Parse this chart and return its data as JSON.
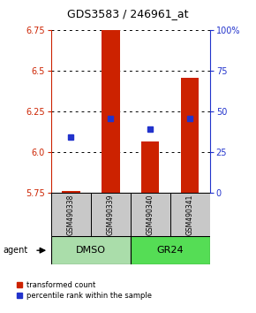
{
  "title": "GDS3583 / 246961_at",
  "samples": [
    "GSM490338",
    "GSM490339",
    "GSM490340",
    "GSM490341"
  ],
  "red_values": [
    5.762,
    6.75,
    6.065,
    6.455
  ],
  "blue_values": [
    6.09,
    6.205,
    6.14,
    6.205
  ],
  "ylim_left": [
    5.75,
    6.75
  ],
  "ylim_right": [
    0,
    100
  ],
  "yticks_left": [
    5.75,
    6.0,
    6.25,
    6.5,
    6.75
  ],
  "yticks_right": [
    0,
    25,
    50,
    75,
    100
  ],
  "ytick_labels_right": [
    "0",
    "25",
    "50",
    "75",
    "100%"
  ],
  "bar_bottom": 5.75,
  "bar_color": "#cc2200",
  "dot_color": "#2233cc",
  "legend_red": "transformed count",
  "legend_blue": "percentile rank within the sample",
  "agent_label": "agent",
  "sample_row_color": "#c8c8c8",
  "group_row_color_dmso": "#aaddaa",
  "group_row_color_gr24": "#55dd55",
  "axis_left_color": "#cc2200",
  "axis_right_color": "#2233cc",
  "bar_width": 0.45,
  "title_fontsize": 9,
  "tick_fontsize": 7,
  "sample_fontsize": 5.5,
  "group_fontsize": 8,
  "legend_fontsize": 6,
  "agent_fontsize": 7
}
